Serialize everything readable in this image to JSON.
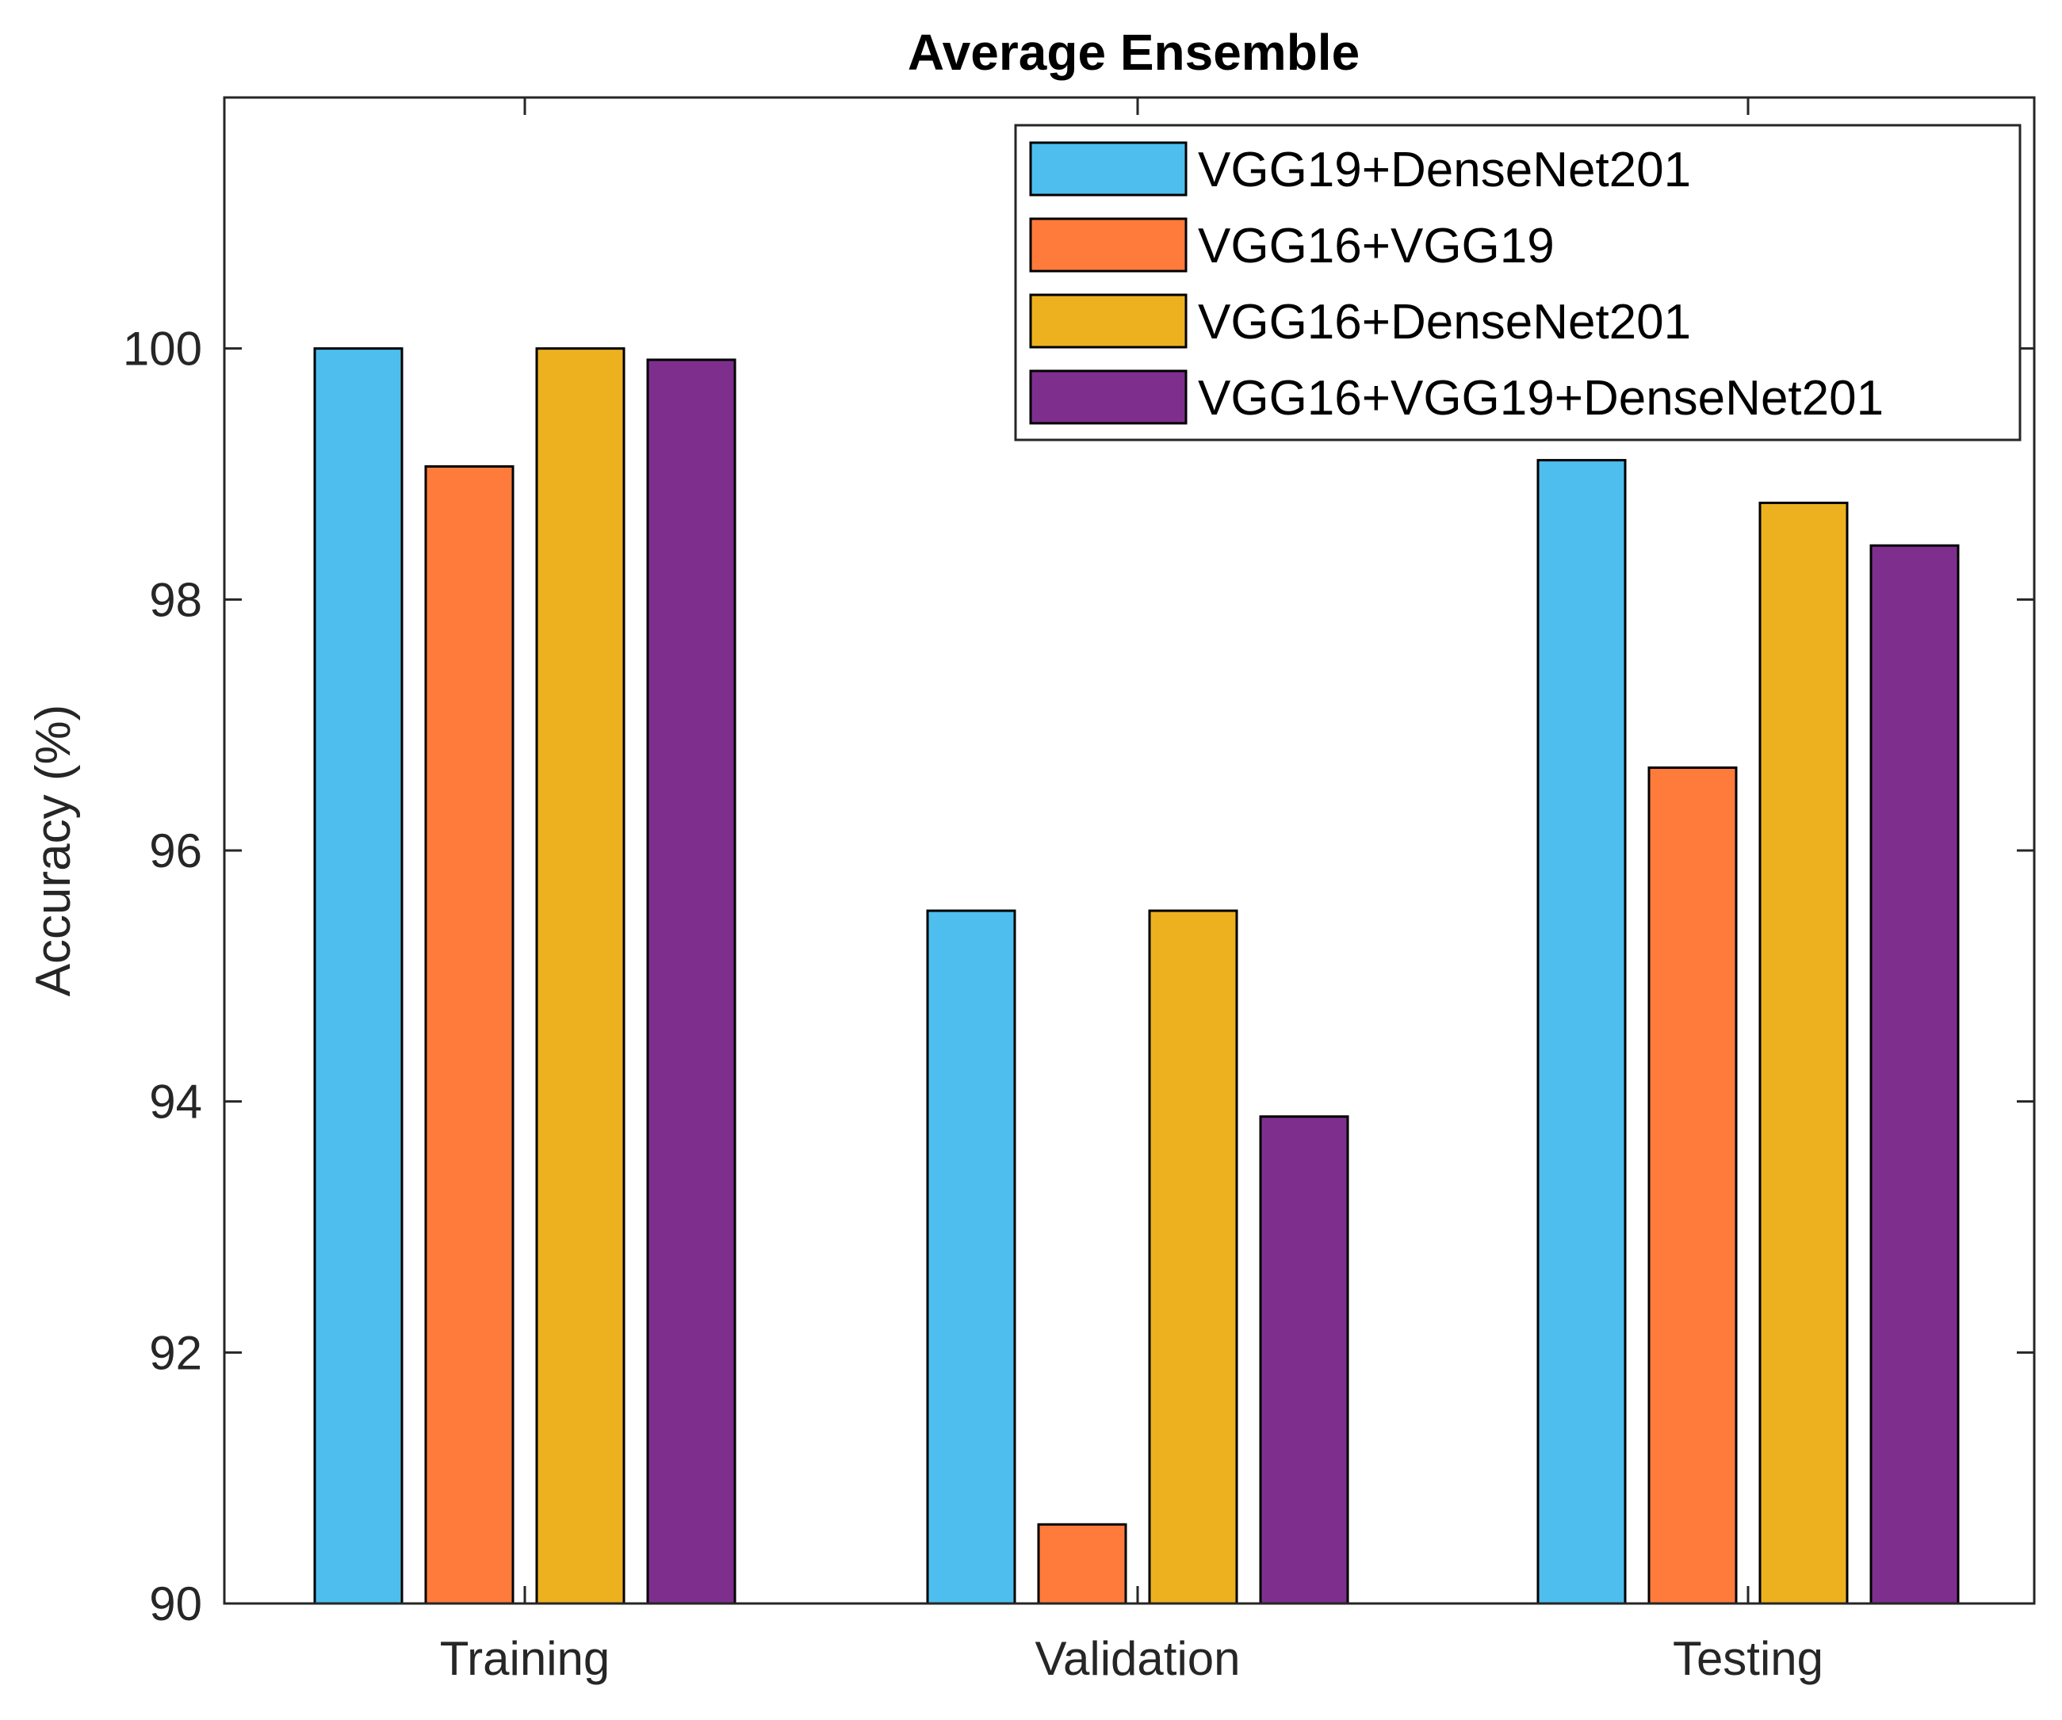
{
  "chart_data": {
    "type": "bar",
    "title": "Average Ensemble",
    "xlabel": "",
    "ylabel": "Accuracy (%)",
    "categories": [
      "Training",
      "Validation",
      "Testing"
    ],
    "ylim": [
      90,
      102
    ],
    "yticks": [
      90,
      92,
      94,
      96,
      98,
      100
    ],
    "grid": false,
    "legend_position": "top-right",
    "series": [
      {
        "name": "VGG19+DenseNet201",
        "color": "#4DBEEE",
        "values": [
          100.0,
          95.52,
          99.11
        ]
      },
      {
        "name": "VGG16+VGG19",
        "color": "#FF7B3C",
        "values": [
          99.06,
          90.63,
          96.66
        ]
      },
      {
        "name": "VGG16+DenseNet201",
        "color": "#EDB120",
        "values": [
          100.0,
          95.52,
          98.77
        ]
      },
      {
        "name": "VGG16+VGG19+DenseNet201",
        "color": "#7E2F8E",
        "values": [
          99.91,
          93.88,
          98.43
        ]
      }
    ]
  }
}
